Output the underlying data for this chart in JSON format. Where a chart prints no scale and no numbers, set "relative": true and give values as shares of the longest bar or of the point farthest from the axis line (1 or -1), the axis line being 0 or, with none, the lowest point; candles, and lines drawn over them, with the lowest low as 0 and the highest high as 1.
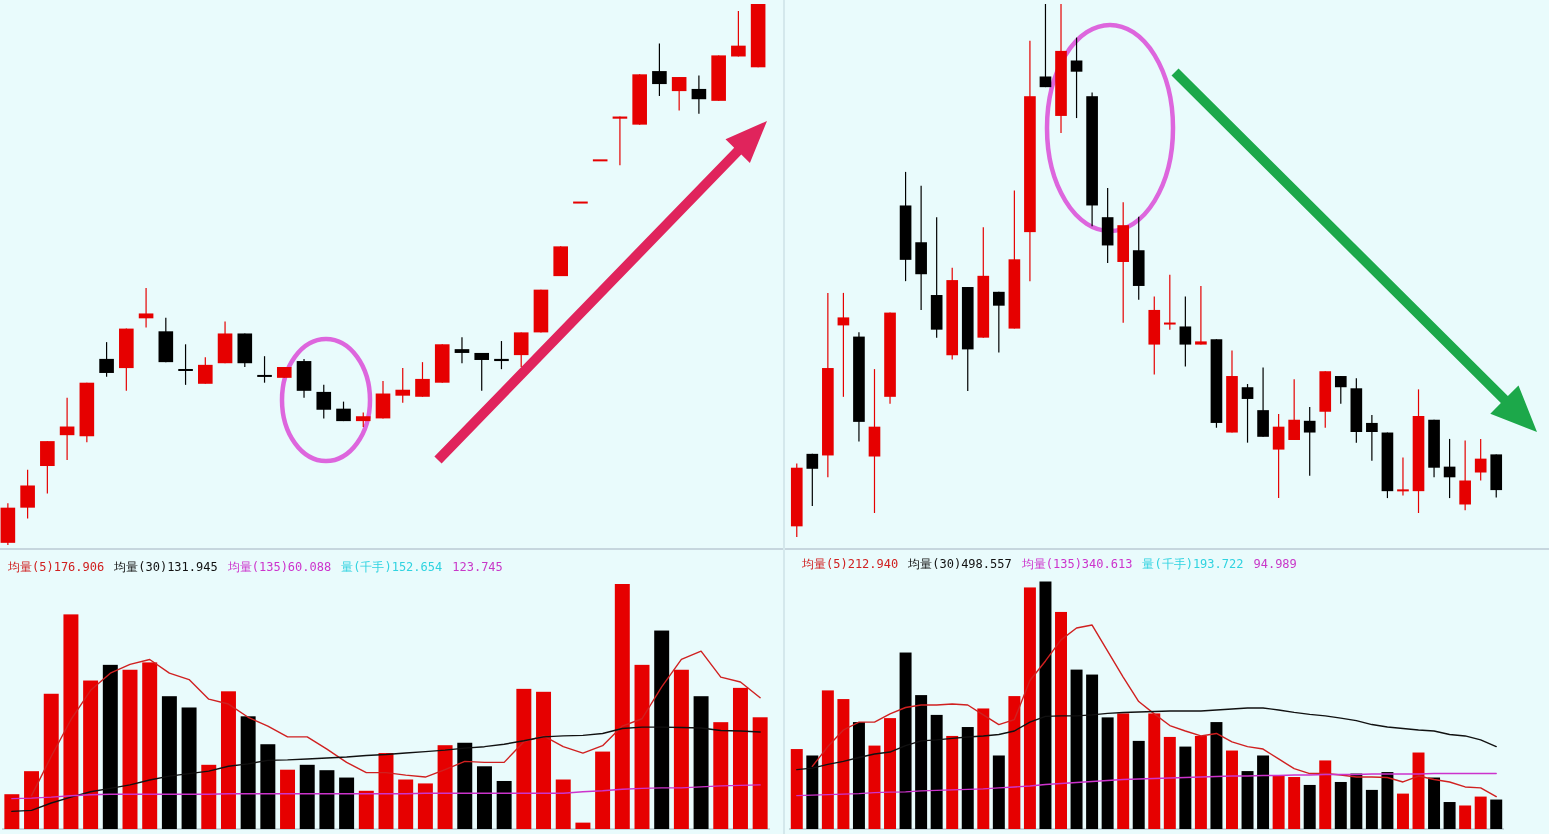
{
  "chart_data": [
    {
      "type": "candlestick",
      "relative": true,
      "categories": [
        null,
        null,
        null,
        null,
        null,
        null,
        null,
        null,
        null,
        null,
        null,
        null,
        null,
        null,
        null,
        null,
        null,
        null,
        null,
        null,
        null,
        null,
        null,
        null,
        null,
        null,
        null,
        null,
        null,
        null,
        null,
        null,
        null,
        null,
        null,
        null,
        null,
        null,
        null
      ],
      "ohlc": [
        [
          0.004,
          0.077,
          0,
          0.069
        ],
        [
          0.069,
          0.139,
          0.049,
          0.11
        ],
        [
          0.146,
          0.192,
          0.095,
          0.192
        ],
        [
          0.203,
          0.272,
          0.157,
          0.219
        ],
        [
          0.201,
          0.3,
          0.19,
          0.3
        ],
        [
          0.344,
          0.375,
          0.311,
          0.318
        ],
        [
          0.327,
          0.4,
          0.285,
          0.4
        ],
        [
          0.419,
          0.475,
          0.402,
          0.428
        ],
        [
          0.395,
          0.42,
          0.338,
          0.338
        ],
        [
          0.325,
          0.371,
          0.296,
          0.322
        ],
        [
          0.298,
          0.347,
          0.298,
          0.333
        ],
        [
          0.336,
          0.413,
          0.336,
          0.391
        ],
        [
          0.391,
          0.391,
          0.329,
          0.336
        ],
        [
          0.314,
          0.349,
          0.3,
          0.311
        ],
        [
          0.309,
          0.329,
          0.309,
          0.329
        ],
        [
          0.34,
          0.344,
          0.272,
          0.285
        ],
        [
          0.283,
          0.296,
          0.234,
          0.25
        ],
        [
          0.252,
          0.265,
          0.229,
          0.229
        ],
        [
          0.229,
          0.245,
          0.218,
          0.238
        ],
        [
          0.234,
          0.303,
          0.234,
          0.28
        ],
        [
          0.276,
          0.327,
          0.263,
          0.287
        ],
        [
          0.274,
          0.338,
          0.274,
          0.307
        ],
        [
          0.3,
          0.371,
          0.3,
          0.371
        ],
        [
          0.362,
          0.384,
          0.336,
          0.355
        ],
        [
          0.355,
          0.355,
          0.285,
          0.342
        ],
        [
          0.344,
          0.377,
          0.325,
          0.34
        ],
        [
          0.351,
          0.393,
          0.329,
          0.393
        ],
        [
          0.393,
          0.472,
          0.393,
          0.472
        ],
        [
          0.497,
          0.552,
          0.497,
          0.552
        ],
        [
          0.633,
          0.633,
          0.633,
          0.633
        ],
        [
          0.711,
          0.711,
          0.711,
          0.711
        ],
        [
          0.788,
          0.792,
          0.702,
          0.792
        ],
        [
          0.777,
          0.87,
          0.777,
          0.87
        ],
        [
          0.876,
          0.927,
          0.83,
          0.852
        ],
        [
          0.839,
          0.865,
          0.803,
          0.865
        ],
        [
          0.843,
          0.868,
          0.797,
          0.824
        ],
        [
          0.821,
          0.905,
          0.821,
          0.905
        ],
        [
          0.903,
          0.987,
          0.903,
          0.923
        ],
        [
          0.883,
          1,
          0.883,
          1
        ]
      ],
      "colors": [
        "#e60000",
        "#e60000",
        "#e60000",
        "#e60000",
        "#e60000",
        "#000000",
        "#e60000",
        "#e60000",
        "#000000",
        "#000000",
        "#e60000",
        "#e60000",
        "#000000",
        "#000000",
        "#e60000",
        "#000000",
        "#000000",
        "#000000",
        "#e60000",
        "#e60000",
        "#e60000",
        "#e60000",
        "#e60000",
        "#000000",
        "#000000",
        "#000000",
        "#e60000",
        "#e60000",
        "#e60000",
        "#e60000",
        "#e60000",
        "#e60000",
        "#e60000",
        "#000000",
        "#e60000",
        "#000000",
        "#e60000",
        "#e60000",
        "#e60000"
      ]
    },
    {
      "type": "candlestick",
      "relative": true,
      "categories": [
        null,
        null,
        null,
        null,
        null,
        null,
        null,
        null,
        null,
        null,
        null,
        null,
        null,
        null,
        null,
        null,
        null,
        null,
        null,
        null,
        null,
        null,
        null,
        null,
        null,
        null,
        null,
        null,
        null,
        null,
        null,
        null,
        null,
        null,
        null,
        null,
        null,
        null,
        null,
        null,
        null,
        null,
        null,
        null,
        null,
        null
      ],
      "ohlc": [
        [
          0.02,
          0.138,
          0,
          0.13
        ],
        [
          0.156,
          0.156,
          0.058,
          0.128
        ],
        [
          0.153,
          0.458,
          0.112,
          0.317
        ],
        [
          0.397,
          0.458,
          0.263,
          0.412
        ],
        [
          0.376,
          0.384,
          0.179,
          0.216
        ],
        [
          0.151,
          0.315,
          0.045,
          0.207
        ],
        [
          0.263,
          0.421,
          0.25,
          0.421
        ],
        [
          0.622,
          0.685,
          0.48,
          0.52
        ],
        [
          0.553,
          0.659,
          0.426,
          0.493
        ],
        [
          0.454,
          0.6,
          0.374,
          0.389
        ],
        [
          0.341,
          0.505,
          0.333,
          0.482
        ],
        [
          0.469,
          0.469,
          0.274,
          0.352
        ],
        [
          0.374,
          0.581,
          0.374,
          0.49
        ],
        [
          0.46,
          0.46,
          0.346,
          0.434
        ],
        [
          0.391,
          0.65,
          0.391,
          0.521
        ],
        [
          0.572,
          0.931,
          0.48,
          0.827
        ],
        [
          0.864,
          1,
          0.844,
          0.844
        ],
        [
          0.79,
          1,
          0.758,
          0.912
        ],
        [
          0.894,
          0.937,
          0.786,
          0.873
        ],
        [
          0.827,
          0.834,
          0.583,
          0.622
        ],
        [
          0.6,
          0.655,
          0.514,
          0.547
        ],
        [
          0.516,
          0.628,
          0.402,
          0.585
        ],
        [
          0.538,
          0.601,
          0.445,
          0.471
        ],
        [
          0.361,
          0.451,
          0.305,
          0.426
        ],
        [
          0.399,
          0.492,
          0.389,
          0.402
        ],
        [
          0.395,
          0.451,
          0.32,
          0.361
        ],
        [
          0.361,
          0.471,
          0.361,
          0.367
        ],
        [
          0.371,
          0.371,
          0.205,
          0.214
        ],
        [
          0.196,
          0.35,
          0.196,
          0.302
        ],
        [
          0.281,
          0.287,
          0.177,
          0.259
        ],
        [
          0.238,
          0.318,
          0.188,
          0.188
        ],
        [
          0.164,
          0.231,
          0.073,
          0.207
        ],
        [
          0.182,
          0.296,
          0.182,
          0.22
        ],
        [
          0.218,
          0.244,
          0.115,
          0.196
        ],
        [
          0.235,
          0.311,
          0.205,
          0.311
        ],
        [
          0.302,
          0.302,
          0.25,
          0.281
        ],
        [
          0.279,
          0.298,
          0.177,
          0.197
        ],
        [
          0.214,
          0.229,
          0.143,
          0.197
        ],
        [
          0.196,
          0.196,
          0.073,
          0.086
        ],
        [
          0.086,
          0.149,
          0.078,
          0.089
        ],
        [
          0.086,
          0.277,
          0.045,
          0.227
        ],
        [
          0.22,
          0.22,
          0.112,
          0.13
        ],
        [
          0.132,
          0.184,
          0.073,
          0.112
        ],
        [
          0.061,
          0.181,
          0.05,
          0.106
        ],
        [
          0.121,
          0.184,
          0.106,
          0.147
        ],
        [
          0.155,
          0.155,
          0.074,
          0.088
        ]
      ],
      "colors": [
        "#e60000",
        "#000000",
        "#e60000",
        "#e60000",
        "#000000",
        "#e60000",
        "#e60000",
        "#000000",
        "#000000",
        "#000000",
        "#e60000",
        "#000000",
        "#e60000",
        "#000000",
        "#e60000",
        "#e60000",
        "#000000",
        "#e60000",
        "#000000",
        "#000000",
        "#000000",
        "#e60000",
        "#000000",
        "#e60000",
        "#e60000",
        "#000000",
        "#e60000",
        "#000000",
        "#e60000",
        "#000000",
        "#000000",
        "#e60000",
        "#e60000",
        "#000000",
        "#e60000",
        "#000000",
        "#000000",
        "#000000",
        "#000000",
        "#e60000",
        "#e60000",
        "#000000",
        "#000000",
        "#e60000",
        "#e60000",
        "#000000"
      ]
    },
    {
      "type": "bar",
      "relative": true,
      "categories": [
        null,
        null,
        null,
        null,
        null,
        null,
        null,
        null,
        null,
        null,
        null,
        null,
        null,
        null,
        null,
        null,
        null,
        null,
        null,
        null,
        null,
        null,
        null,
        null,
        null,
        null,
        null,
        null,
        null,
        null,
        null,
        null,
        null,
        null,
        null,
        null,
        null,
        null,
        null
      ],
      "series": [
        {
          "type": "bar",
          "values": [
            0.142,
            0.236,
            0.552,
            0.876,
            0.606,
            0.67,
            0.65,
            0.68,
            0.542,
            0.496,
            0.262,
            0.562,
            0.46,
            0.346,
            0.242,
            0.262,
            0.24,
            0.21,
            0.156,
            0.31,
            0.202,
            0.186,
            0.342,
            0.352,
            0.256,
            0.196,
            0.572,
            0.56,
            0.202,
            0.026,
            0.316,
            1,
            0.67,
            0.81,
            0.65,
            0.542,
            0.436,
            0.576,
            0.456
          ],
          "colors": [
            "#e60000",
            "#e60000",
            "#e60000",
            "#e60000",
            "#e60000",
            "#000000",
            "#e60000",
            "#e60000",
            "#000000",
            "#000000",
            "#e60000",
            "#e60000",
            "#000000",
            "#000000",
            "#e60000",
            "#000000",
            "#000000",
            "#000000",
            "#e60000",
            "#e60000",
            "#e60000",
            "#e60000",
            "#e60000",
            "#000000",
            "#000000",
            "#000000",
            "#e60000",
            "#e60000",
            "#e60000",
            "#e60000",
            "#e60000",
            "#e60000",
            "#e60000",
            "#000000",
            "#e60000",
            "#000000",
            "#e60000",
            "#e60000",
            "#e60000"
          ]
        },
        {
          "type": "line",
          "name": "均量(5)176.906",
          "color": "#d02020",
          "values": [
            null,
            0.136,
            0.296,
            0.446,
            0.566,
            0.636,
            0.672,
            0.692,
            0.636,
            0.61,
            0.53,
            0.51,
            0.456,
            0.42,
            0.376,
            0.376,
            0.326,
            0.272,
            0.23,
            0.23,
            0.22,
            0.212,
            0.242,
            0.276,
            0.272,
            0.272,
            0.356,
            0.38,
            0.336,
            0.31,
            0.34,
            0.42,
            0.45,
            0.58,
            0.692,
            0.726,
            0.62,
            0.6,
            0.536
          ]
        },
        {
          "type": "line",
          "name": "均量(30)131.945",
          "color": "#111111",
          "values": [
            0.072,
            0.076,
            0.106,
            0.13,
            0.152,
            0.166,
            0.18,
            0.2,
            0.216,
            0.226,
            0.236,
            0.256,
            0.266,
            0.28,
            0.282,
            0.286,
            0.29,
            0.294,
            0.3,
            0.304,
            0.31,
            0.316,
            0.322,
            0.33,
            0.336,
            0.346,
            0.36,
            0.376,
            0.38,
            0.382,
            0.39,
            0.41,
            0.416,
            0.416,
            0.414,
            0.412,
            0.402,
            0.4,
            0.396
          ]
        },
        {
          "type": "line",
          "name": "均量(135)60.088",
          "color": "#cc33cc",
          "values": [
            0.124,
            0.126,
            0.13,
            0.136,
            0.14,
            0.142,
            0.142,
            0.142,
            0.142,
            0.142,
            0.142,
            0.144,
            0.144,
            0.144,
            0.144,
            0.144,
            0.144,
            0.144,
            0.144,
            0.144,
            0.144,
            0.146,
            0.146,
            0.146,
            0.146,
            0.146,
            0.146,
            0.146,
            0.146,
            0.152,
            0.156,
            0.162,
            0.166,
            0.168,
            0.168,
            0.172,
            0.176,
            0.178,
            0.18
          ]
        }
      ],
      "annotations": [
        "量(千手)152.654",
        "123.745"
      ]
    },
    {
      "type": "bar",
      "relative": true,
      "categories": [
        null,
        null,
        null,
        null,
        null,
        null,
        null,
        null,
        null,
        null,
        null,
        null,
        null,
        null,
        null,
        null,
        null,
        null,
        null,
        null,
        null,
        null,
        null,
        null,
        null,
        null,
        null,
        null,
        null,
        null,
        null,
        null,
        null,
        null,
        null,
        null,
        null,
        null,
        null,
        null,
        null,
        null,
        null,
        null,
        null,
        null
      ],
      "series": [
        {
          "type": "bar",
          "values": [
            0.323,
            0.297,
            0.56,
            0.525,
            0.432,
            0.337,
            0.448,
            0.713,
            0.541,
            0.461,
            0.376,
            0.412,
            0.487,
            0.297,
            0.537,
            0.976,
            1,
            0.877,
            0.644,
            0.624,
            0.451,
            0.467,
            0.356,
            0.467,
            0.372,
            0.333,
            0.376,
            0.432,
            0.317,
            0.234,
            0.297,
            0.218,
            0.21,
            0.178,
            0.277,
            0.19,
            0.224,
            0.158,
            0.23,
            0.143,
            0.309,
            0.208,
            0.109,
            0.095,
            0.131,
            0.119
          ],
          "colors": [
            "#e60000",
            "#000000",
            "#e60000",
            "#e60000",
            "#000000",
            "#e60000",
            "#e60000",
            "#000000",
            "#000000",
            "#000000",
            "#e60000",
            "#000000",
            "#e60000",
            "#000000",
            "#e60000",
            "#e60000",
            "#000000",
            "#e60000",
            "#000000",
            "#000000",
            "#000000",
            "#e60000",
            "#000000",
            "#e60000",
            "#e60000",
            "#000000",
            "#e60000",
            "#000000",
            "#e60000",
            "#000000",
            "#000000",
            "#e60000",
            "#e60000",
            "#000000",
            "#e60000",
            "#000000",
            "#000000",
            "#000000",
            "#000000",
            "#e60000",
            "#e60000",
            "#000000",
            "#000000",
            "#e60000",
            "#e60000",
            "#000000"
          ]
        },
        {
          "type": "line",
          "name": "均量(5)212.940",
          "color": "#d02020",
          "values": [
            null,
            0.253,
            0.333,
            0.4,
            0.432,
            0.432,
            0.465,
            0.491,
            0.501,
            0.501,
            0.505,
            0.501,
            0.461,
            0.422,
            0.442,
            0.6,
            0.679,
            0.764,
            0.812,
            0.824,
            0.719,
            0.614,
            0.515,
            0.465,
            0.418,
            0.396,
            0.376,
            0.386,
            0.352,
            0.333,
            0.323,
            0.283,
            0.244,
            0.224,
            0.224,
            0.218,
            0.21,
            0.21,
            0.208,
            0.19,
            0.214,
            0.2,
            0.19,
            0.17,
            0.166,
            0.131
          ]
        },
        {
          "type": "line",
          "name": "均量(30)498.557",
          "color": "#111111",
          "values": [
            0.24,
            0.246,
            0.261,
            0.273,
            0.289,
            0.303,
            0.311,
            0.337,
            0.356,
            0.36,
            0.366,
            0.372,
            0.376,
            0.382,
            0.396,
            0.432,
            0.455,
            0.457,
            0.457,
            0.461,
            0.467,
            0.471,
            0.473,
            0.475,
            0.477,
            0.477,
            0.477,
            0.481,
            0.485,
            0.489,
            0.489,
            0.481,
            0.471,
            0.463,
            0.457,
            0.448,
            0.438,
            0.422,
            0.412,
            0.406,
            0.4,
            0.396,
            0.382,
            0.376,
            0.36,
            0.333
          ]
        },
        {
          "type": "line",
          "name": "均量(135)340.613",
          "color": "#cc33cc",
          "values": [
            0.135,
            0.137,
            0.139,
            0.141,
            0.143,
            0.147,
            0.149,
            0.15,
            0.154,
            0.156,
            0.158,
            0.16,
            0.162,
            0.166,
            0.17,
            0.174,
            0.18,
            0.184,
            0.188,
            0.192,
            0.196,
            0.2,
            0.202,
            0.204,
            0.206,
            0.208,
            0.21,
            0.212,
            0.214,
            0.214,
            0.216,
            0.216,
            0.218,
            0.218,
            0.22,
            0.22,
            0.22,
            0.222,
            0.222,
            0.222,
            0.222,
            0.224,
            0.224,
            0.224,
            0.224,
            0.224
          ]
        }
      ],
      "annotations": [
        "量(千手)193.722",
        "94.989"
      ]
    }
  ]
}
